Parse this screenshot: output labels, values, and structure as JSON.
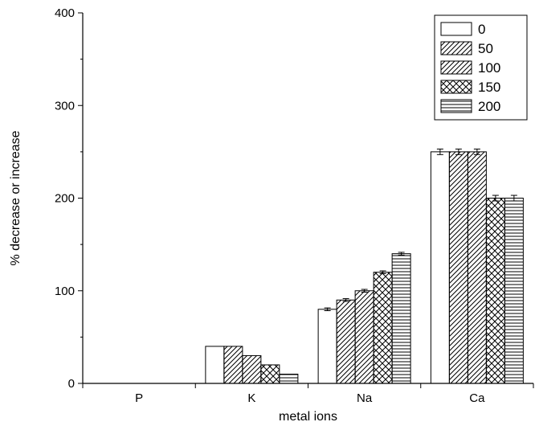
{
  "chart_data": {
    "type": "bar",
    "title": "",
    "xlabel": "metal ions",
    "ylabel": "% decrease or increase",
    "categories": [
      "P",
      "K",
      "Na",
      "Ca"
    ],
    "ylim": [
      0,
      400
    ],
    "yticks": [
      "0",
      "100",
      "200",
      "300",
      "400"
    ],
    "legend_position": "top-right",
    "grid": false,
    "series": [
      {
        "name": "0",
        "pattern": "none",
        "values": [
          0,
          40,
          80,
          250
        ],
        "errors": [
          0,
          0,
          1.5,
          3
        ]
      },
      {
        "name": "50",
        "pattern": "diagonal",
        "values": [
          0,
          40,
          90,
          250
        ],
        "errors": [
          0,
          0,
          1.5,
          3
        ]
      },
      {
        "name": "100",
        "pattern": "diagonal",
        "values": [
          0,
          30,
          100,
          250
        ],
        "errors": [
          0,
          0,
          1.5,
          3
        ]
      },
      {
        "name": "150",
        "pattern": "crosshatch",
        "values": [
          0,
          20,
          120,
          200
        ],
        "errors": [
          0,
          0,
          1.5,
          3
        ]
      },
      {
        "name": "200",
        "pattern": "horizontal",
        "values": [
          0,
          10,
          140,
          200
        ],
        "errors": [
          0,
          0,
          1.5,
          3
        ]
      }
    ]
  }
}
